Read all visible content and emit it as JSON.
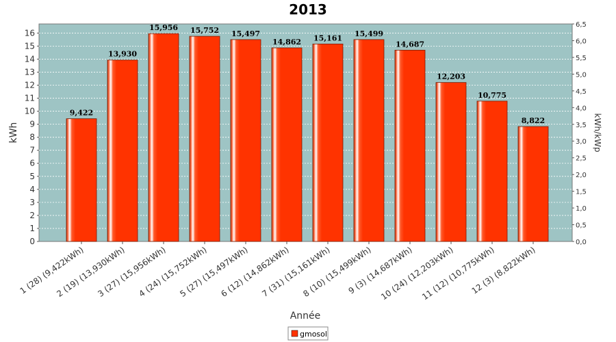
{
  "chart_data": {
    "type": "bar",
    "title": "2013",
    "xlabel": "Année",
    "ylabel": "kWh",
    "y2label": "kWh/kWp",
    "ylim": [
      0,
      16.7
    ],
    "y2lim": [
      0,
      6.5
    ],
    "yticks": [
      0,
      1,
      2,
      3,
      4,
      5,
      6,
      7,
      8,
      9,
      10,
      11,
      12,
      13,
      14,
      15,
      16
    ],
    "y2ticks": [
      "0,0",
      "0,5",
      "1,0",
      "1,5",
      "2,0",
      "2,5",
      "3,0",
      "3,5",
      "4,0",
      "4,5",
      "5,0",
      "5,5",
      "6,0",
      "6,5"
    ],
    "categories": [
      "1 (28)  (9,422kWh)",
      "2 (19)  (13,930kWh)",
      "3 (27)  (15,956kWh)",
      "4 (24)  (15,752kWh)",
      "5 (27)  (15,497kWh)",
      "6 (12)  (14,862kWh)",
      "7 (31)  (15,161kWh)",
      "8 (10)  (15,499kWh)",
      "9 (3)  (14,687kWh)",
      "10 (24)  (12,203kWh)",
      "11 (12)  (10,775kWh)",
      "12 (3)  (8,822kWh)"
    ],
    "series": [
      {
        "name": "gmosol",
        "values": [
          9.422,
          13.93,
          15.956,
          15.752,
          15.497,
          14.862,
          15.161,
          15.499,
          14.687,
          12.203,
          10.775,
          8.822
        ],
        "labels": [
          "9,422",
          "13,930",
          "15,956",
          "15,752",
          "15,497",
          "14,862",
          "15,161",
          "15,499",
          "14,687",
          "12,203",
          "10,775",
          "8,822"
        ]
      }
    ],
    "grid": true,
    "legend": "bottom-center",
    "colors": {
      "plot_bg": "#9ec4c4",
      "bar": "#ff3300",
      "bar_highlight": "#ffffff",
      "grid": "#ffffff"
    }
  }
}
